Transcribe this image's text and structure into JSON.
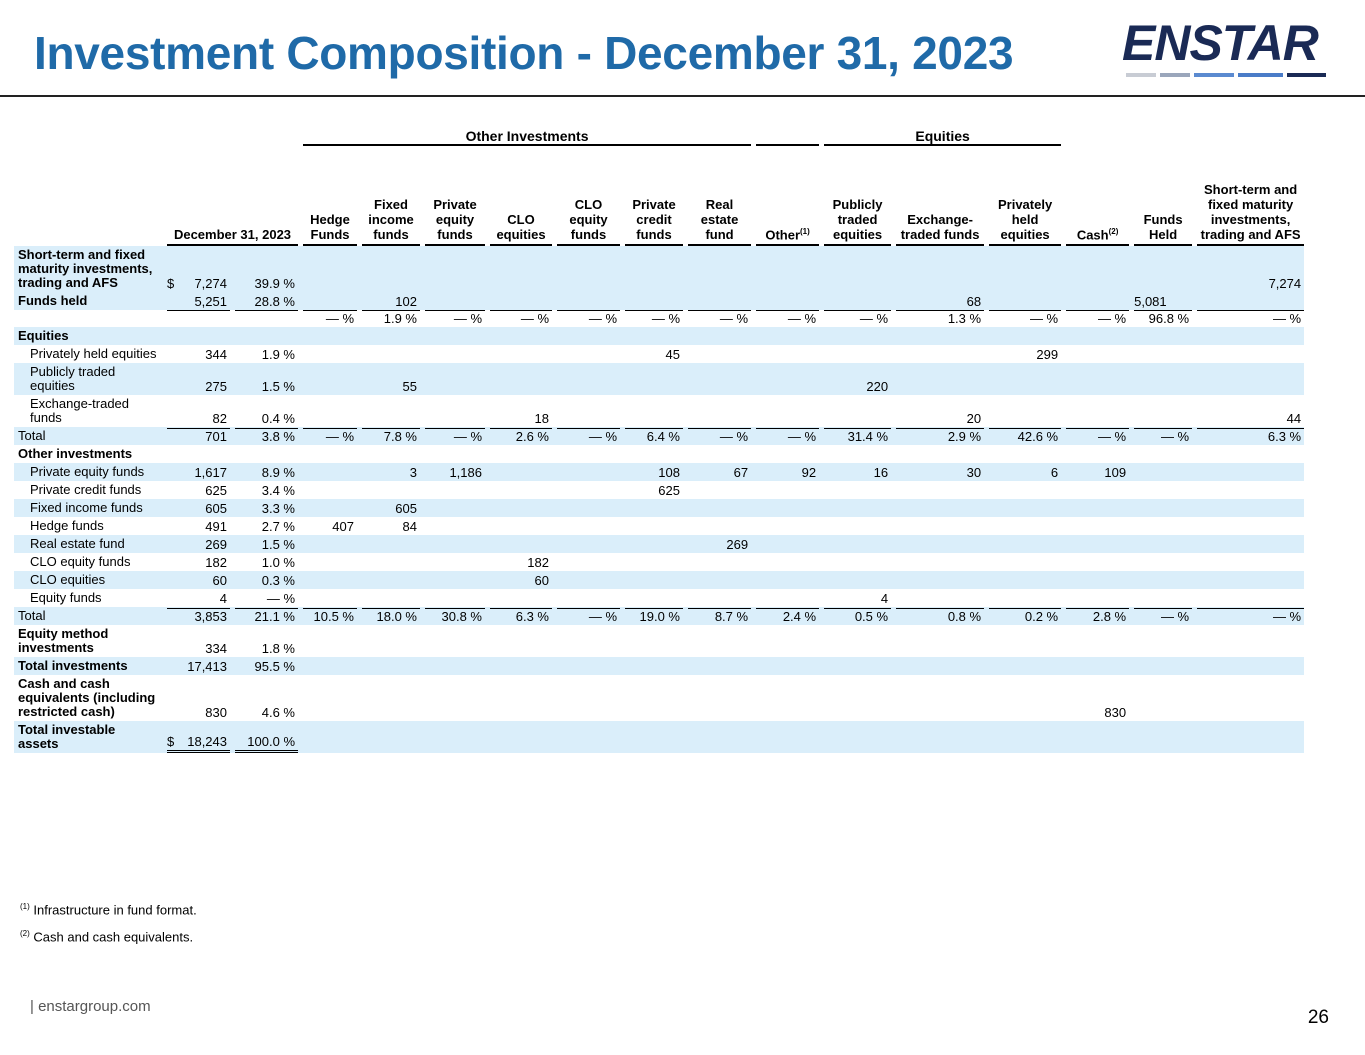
{
  "header": {
    "title": "Investment Composition - December 31, 2023",
    "logo": "ENSTAR"
  },
  "table": {
    "date_header": "December 31, 2023",
    "groups": [
      "Other Investments",
      "Equities"
    ],
    "columns": [
      {
        "text": "Hedge Funds"
      },
      {
        "text": "Fixed income funds"
      },
      {
        "text": "Private equity funds"
      },
      {
        "text": "CLO equities"
      },
      {
        "text": "CLO equity funds"
      },
      {
        "text": "Private credit funds"
      },
      {
        "text": "Real estate fund"
      },
      {
        "text": "Other",
        "sup": "(1)"
      },
      {
        "text": "Publicly traded equities"
      },
      {
        "text": "Exchange-traded funds"
      },
      {
        "text": "Privately held equities"
      },
      {
        "text": "Cash",
        "sup": "(2)"
      },
      {
        "text": "Funds Held"
      },
      {
        "text": "Short-term and fixed maturity investments, trading and AFS"
      }
    ],
    "rows": [
      {
        "label": "Short-term and fixed maturity investments, trading and AFS",
        "amount": "$  7,274",
        "pct": "39.9 %",
        "cells": {
          "13": "7,274"
        },
        "shaded": true,
        "style": "bold"
      },
      {
        "label": "Funds held",
        "amount": "5,251",
        "pct": "28.8 %",
        "cells": {
          "1": "102",
          "9": "68",
          "12": "5,081"
        },
        "shaded": true,
        "style": "bold"
      },
      {
        "label": null,
        "amount": null,
        "pct": null,
        "cells": [
          "— %",
          "1.9 %",
          "— %",
          "— %",
          "— %",
          "— %",
          "— %",
          "— %",
          "— %",
          "1.3 %",
          "— %",
          "— %",
          "96.8 %",
          "— %"
        ],
        "shaded": false,
        "style": "pctrow"
      },
      {
        "label": "Equities",
        "amount": null,
        "pct": null,
        "cells": {},
        "shaded": true,
        "style": "bold"
      },
      {
        "label": "Privately held equities",
        "amount": "344",
        "pct": "1.9 %",
        "cells": {
          "5": "45",
          "10": "299"
        },
        "shaded": false,
        "style": "indent"
      },
      {
        "label": "Publicly traded equities",
        "amount": "275",
        "pct": "1.5 %",
        "cells": {
          "1": "55",
          "8": "220"
        },
        "shaded": true,
        "style": "indent"
      },
      {
        "label": "Exchange-traded funds",
        "amount": "82",
        "pct": "0.4 %",
        "cells": {
          "3": "18",
          "9": "20",
          "13": "44"
        },
        "shaded": false,
        "style": "indent"
      },
      {
        "label": "Total",
        "amount": "701",
        "pct": "3.8 %",
        "cells": [
          "— %",
          "7.8 %",
          "— %",
          "2.6 %",
          "— %",
          "6.4 %",
          "— %",
          "— %",
          "31.4 %",
          "2.9 %",
          "42.6 %",
          "— %",
          "— %",
          "6.3 %"
        ],
        "shaded": true,
        "style": "total"
      },
      {
        "label": "Other investments",
        "amount": null,
        "pct": null,
        "cells": {},
        "shaded": false,
        "style": "bold"
      },
      {
        "label": "Private equity funds",
        "amount": "1,617",
        "pct": "8.9 %",
        "cells": {
          "1": "3",
          "2": "1,186",
          "5": "108",
          "6": "67",
          "7": "92",
          "8": "16",
          "9": "30",
          "10": "6",
          "11": "109"
        },
        "shaded": true,
        "style": "indent"
      },
      {
        "label": "Private credit funds",
        "amount": "625",
        "pct": "3.4 %",
        "cells": {
          "5": "625"
        },
        "shaded": false,
        "style": "indent"
      },
      {
        "label": "Fixed income funds",
        "amount": "605",
        "pct": "3.3 %",
        "cells": {
          "1": "605"
        },
        "shaded": true,
        "style": "indent"
      },
      {
        "label": "Hedge funds",
        "amount": "491",
        "pct": "2.7 %",
        "cells": {
          "0": "407",
          "1": "84"
        },
        "shaded": false,
        "style": "indent"
      },
      {
        "label": "Real estate fund",
        "amount": "269",
        "pct": "1.5 %",
        "cells": {
          "6": "269"
        },
        "shaded": true,
        "style": "indent"
      },
      {
        "label": "CLO equity funds",
        "amount": "182",
        "pct": "1.0 %",
        "cells": {
          "3": "182"
        },
        "shaded": false,
        "style": "indent"
      },
      {
        "label": "CLO equities",
        "amount": "60",
        "pct": "0.3 %",
        "cells": {
          "3": "60"
        },
        "shaded": true,
        "style": "indent"
      },
      {
        "label": "Equity funds",
        "amount": "4",
        "pct": "— %",
        "cells": {
          "8": "4"
        },
        "shaded": false,
        "style": "indent"
      },
      {
        "label": "Total",
        "amount": "3,853",
        "pct": "21.1 %",
        "cells": [
          "10.5 %",
          "18.0 %",
          "30.8 %",
          "6.3 %",
          "— %",
          "19.0 %",
          "8.7 %",
          "2.4 %",
          "0.5 %",
          "0.8 %",
          "0.2 %",
          "2.8 %",
          "— %",
          "— %"
        ],
        "shaded": true,
        "style": "total"
      },
      {
        "label": "Equity method investments",
        "amount": "334",
        "pct": "1.8 %",
        "cells": {},
        "shaded": false,
        "style": "bold"
      },
      {
        "label": "Total investments",
        "amount": "17,413",
        "pct": "95.5 %",
        "cells": {},
        "shaded": true,
        "style": "bold"
      },
      {
        "label": "Cash and cash equivalents (including restricted cash)",
        "amount": "830",
        "pct": "4.6 %",
        "cells": {
          "11": "830"
        },
        "shaded": false,
        "style": "bold"
      },
      {
        "label": "Total investable assets",
        "amount": "$ 18,243",
        "pct": "100.0 %",
        "cells": {},
        "shaded": true,
        "style": "bold last"
      }
    ]
  },
  "footnotes": [
    {
      "mark": "(1)",
      "text": " Infrastructure in fund format."
    },
    {
      "mark": "(2)",
      "text": " Cash and cash equivalents."
    }
  ],
  "footer": {
    "site": "|   enstargroup.com",
    "page": "26"
  }
}
